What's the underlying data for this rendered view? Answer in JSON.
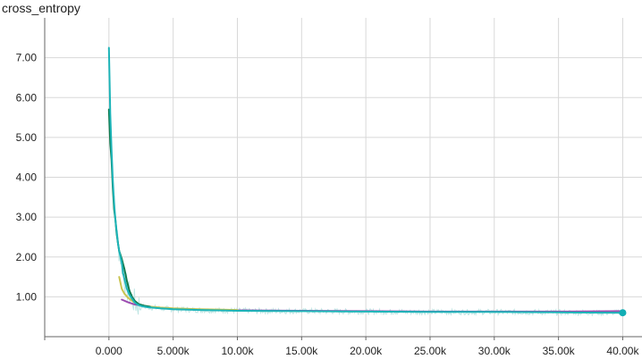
{
  "chart_data": {
    "type": "line",
    "title": "cross_entropy",
    "xlabel": "",
    "ylabel": "",
    "xlim": [
      -5000,
      41500
    ],
    "ylim": [
      0.0,
      8.0
    ],
    "grid": true,
    "legend": "none",
    "x_ticks": [
      0,
      5000,
      10000,
      15000,
      20000,
      25000,
      30000,
      35000,
      40000
    ],
    "x_tick_labels": [
      "0.000",
      "5.000k",
      "10.00k",
      "15.00k",
      "20.00k",
      "25.00k",
      "30.00k",
      "35.00k",
      "40.00k"
    ],
    "y_ticks": [
      1,
      2,
      3,
      4,
      5,
      6,
      7
    ],
    "y_tick_labels": [
      "1.00",
      "2.00",
      "3.00",
      "4.00",
      "5.00",
      "6.00",
      "7.00"
    ],
    "colors": {
      "grid": "#d8d8d8",
      "axis": "#666666",
      "raw_noise": "#b5e2df",
      "marker": "#12aeb5"
    },
    "series": [
      {
        "color": "#1db4b8",
        "x": [
          0,
          100,
          200,
          300,
          400,
          500,
          600,
          700,
          800,
          900,
          1000,
          1100,
          1200,
          1400,
          1600,
          1800,
          2000,
          2200,
          2500,
          3000,
          4000,
          5000,
          7000,
          10000,
          15000,
          20000,
          25000,
          30000,
          35000,
          40000
        ],
        "y": [
          7.25,
          5.6,
          4.7,
          3.95,
          3.35,
          2.95,
          2.65,
          2.35,
          2.15,
          2.0,
          1.85,
          1.6,
          1.45,
          1.2,
          1.05,
          0.95,
          0.86,
          0.81,
          0.77,
          0.74,
          0.71,
          0.69,
          0.67,
          0.65,
          0.64,
          0.63,
          0.62,
          0.62,
          0.61,
          0.6
        ]
      },
      {
        "color": "#0f7a4d",
        "x": [
          0,
          100,
          200,
          300,
          400,
          500,
          600,
          700,
          800,
          900,
          1000,
          1200,
          1400,
          1600,
          1800,
          2000,
          2300,
          2700,
          3200
        ],
        "y": [
          5.7,
          4.85,
          4.45,
          3.75,
          3.2,
          2.95,
          2.6,
          2.35,
          2.15,
          2.05,
          1.95,
          1.7,
          1.4,
          1.15,
          1.0,
          0.9,
          0.82,
          0.78,
          0.75
        ]
      },
      {
        "color": "#c9c451",
        "x": [
          800,
          1000,
          1200,
          1500,
          1800,
          2100,
          2500,
          3000,
          4000,
          5000,
          7000,
          10000
        ],
        "y": [
          1.5,
          1.2,
          1.08,
          0.97,
          0.9,
          0.84,
          0.79,
          0.76,
          0.73,
          0.71,
          0.69,
          0.67
        ]
      },
      {
        "color": "#9c4bb0",
        "x": [
          1000,
          1500,
          2000,
          2500,
          3000,
          4000,
          5000,
          7000,
          10000,
          15000,
          20000,
          25000,
          30000,
          35000,
          40000
        ],
        "y": [
          0.93,
          0.86,
          0.81,
          0.78,
          0.75,
          0.72,
          0.7,
          0.68,
          0.66,
          0.65,
          0.64,
          0.63,
          0.63,
          0.63,
          0.64
        ]
      }
    ]
  }
}
